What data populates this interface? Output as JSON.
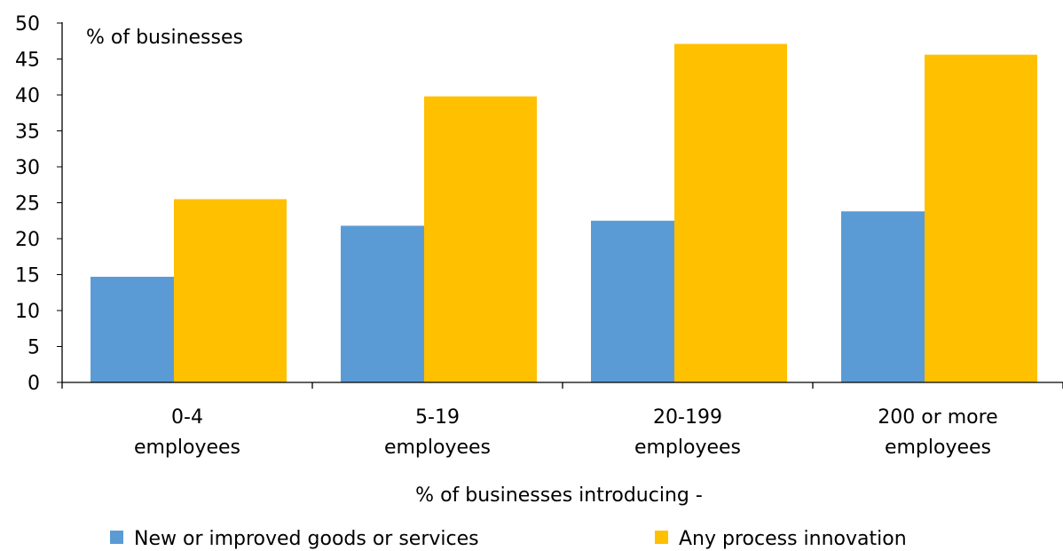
{
  "chart_data": {
    "type": "bar",
    "unit_label": "% of businesses",
    "categories": [
      [
        "0-4",
        "employees"
      ],
      [
        "5-19",
        "employees"
      ],
      [
        "20-199",
        "employees"
      ],
      [
        "200 or more",
        "employees"
      ]
    ],
    "legend_title": "% of businesses introducing -",
    "legend_position": "bottom",
    "ylim": [
      0,
      50
    ],
    "yticks": [
      0,
      5,
      10,
      15,
      20,
      25,
      30,
      35,
      40,
      45,
      50
    ],
    "grid": false,
    "series": [
      {
        "name": "New or improved goods or services",
        "color": "#5b9bd5",
        "values": [
          14.7,
          21.8,
          22.5,
          23.8
        ]
      },
      {
        "name": "Any process innovation",
        "color": "#ffc000",
        "values": [
          25.5,
          39.8,
          47.1,
          45.6
        ]
      }
    ]
  }
}
